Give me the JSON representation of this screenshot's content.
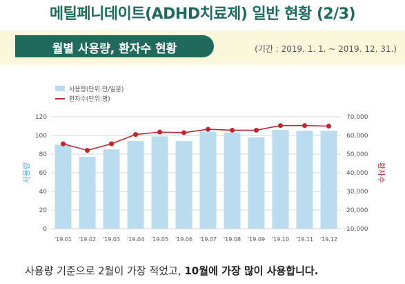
{
  "header": {
    "title": "메틸페니데이트(ADHD치료제) 일반 현황 (2/3)",
    "section_label": "월별 사용량, 환자수 현황",
    "period": "(기간 : 2019. 1. 1. ~ 2019. 12. 31.)"
  },
  "colors": {
    "bar": "#b9dcef",
    "line": "#c0262d",
    "accent": "#1f6a5a",
    "band": "#fbf7db"
  },
  "chart_data": {
    "type": "bar",
    "categories": [
      "'19.01",
      "'19.02",
      "'19.03",
      "'19.04",
      "'19.05",
      "'19.06",
      "'19.07",
      "'19.08",
      "'19.09",
      "'19.10",
      "'19.11",
      "'19.12"
    ],
    "series": [
      {
        "name": "사용량(단위:만/일분)",
        "type": "bar",
        "axis": "left",
        "values": [
          90,
          77,
          85,
          94,
          99,
          94,
          104,
          103,
          98,
          106,
          105,
          105
        ]
      },
      {
        "name": "환자수(단위:명)",
        "type": "line",
        "axis": "right",
        "values": [
          55500,
          52000,
          55500,
          60500,
          61800,
          61500,
          63300,
          62800,
          62800,
          65300,
          65300,
          65000
        ]
      }
    ],
    "ylabel": "사용량",
    "y2label": "환자수",
    "ylim": [
      0,
      120
    ],
    "y2lim": [
      10000,
      70000
    ],
    "yticks": [
      "0",
      "20",
      "40",
      "60",
      "80",
      "100",
      "120"
    ],
    "y2ticks": [
      "10,000",
      "20,000",
      "30,000",
      "40,000",
      "50,000",
      "60,000",
      "70,000"
    ],
    "legend": "top-left",
    "grid": true
  },
  "caption": {
    "normal": "사용량 기준으로 2월이 가장 적었고, ",
    "bold": "10월에 가장 많이 사용합니다."
  }
}
